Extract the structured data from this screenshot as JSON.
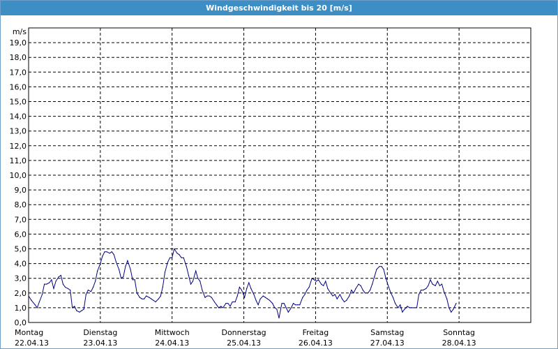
{
  "window": {
    "title": "Windgeschwindigkeit bis 20 [m/s]"
  },
  "colors": {
    "title_bar": "#3c8ec4",
    "line": "#000080",
    "grid": "#000000"
  },
  "chart_data": {
    "type": "line",
    "title": "Windgeschwindigkeit bis 20 [m/s]",
    "ylabel": "m/s",
    "ylim": [
      0,
      20
    ],
    "y_ticks": [
      "0,0",
      "1,0",
      "2,0",
      "3,0",
      "4,0",
      "5,0",
      "6,0",
      "7,0",
      "8,0",
      "9,0",
      "10,0",
      "11,0",
      "12,0",
      "13,0",
      "14,0",
      "15,0",
      "16,0",
      "17,0",
      "18,0",
      "19,0"
    ],
    "x_ticks": [
      {
        "day": "Montag",
        "date": "22.04.13"
      },
      {
        "day": "Dienstag",
        "date": "23.04.13"
      },
      {
        "day": "Mittwoch",
        "date": "24.04.13"
      },
      {
        "day": "Donnerstag",
        "date": "25.04.13"
      },
      {
        "day": "Freitag",
        "date": "26.04.13"
      },
      {
        "day": "Samstag",
        "date": "27.04.13"
      },
      {
        "day": "Sonntag",
        "date": "28.04.13"
      }
    ],
    "xlim_days": [
      0,
      7
    ],
    "grid": true,
    "series": [
      {
        "values": [
          [
            0.0,
            1.8
          ],
          [
            0.04,
            1.5
          ],
          [
            0.09,
            1.2
          ],
          [
            0.12,
            1.0
          ],
          [
            0.15,
            1.4
          ],
          [
            0.19,
            1.9
          ],
          [
            0.22,
            2.6
          ],
          [
            0.25,
            2.6
          ],
          [
            0.29,
            2.7
          ],
          [
            0.32,
            2.9
          ],
          [
            0.35,
            2.3
          ],
          [
            0.38,
            2.8
          ],
          [
            0.42,
            3.1
          ],
          [
            0.45,
            3.2
          ],
          [
            0.48,
            2.6
          ],
          [
            0.51,
            2.4
          ],
          [
            0.55,
            2.3
          ],
          [
            0.58,
            2.2
          ],
          [
            0.61,
            1.0
          ],
          [
            0.64,
            1.1
          ],
          [
            0.67,
            0.8
          ],
          [
            0.71,
            0.7
          ],
          [
            0.74,
            0.8
          ],
          [
            0.77,
            0.9
          ],
          [
            0.8,
            1.9
          ],
          [
            0.83,
            2.2
          ],
          [
            0.87,
            2.1
          ],
          [
            0.9,
            2.4
          ],
          [
            0.93,
            2.8
          ],
          [
            0.96,
            3.5
          ],
          [
            1.0,
            4.0
          ],
          [
            1.03,
            4.5
          ],
          [
            1.06,
            4.8
          ],
          [
            1.09,
            4.8
          ],
          [
            1.13,
            4.7
          ],
          [
            1.16,
            4.8
          ],
          [
            1.19,
            4.6
          ],
          [
            1.22,
            4.1
          ],
          [
            1.26,
            3.6
          ],
          [
            1.29,
            3.0
          ],
          [
            1.32,
            3.1
          ],
          [
            1.35,
            3.8
          ],
          [
            1.38,
            4.2
          ],
          [
            1.42,
            3.6
          ],
          [
            1.45,
            2.9
          ],
          [
            1.48,
            2.9
          ],
          [
            1.51,
            2.0
          ],
          [
            1.55,
            1.7
          ],
          [
            1.58,
            1.6
          ],
          [
            1.61,
            1.6
          ],
          [
            1.64,
            1.8
          ],
          [
            1.68,
            1.7
          ],
          [
            1.71,
            1.6
          ],
          [
            1.74,
            1.5
          ],
          [
            1.77,
            1.4
          ],
          [
            1.81,
            1.6
          ],
          [
            1.84,
            1.8
          ],
          [
            1.87,
            2.4
          ],
          [
            1.9,
            3.4
          ],
          [
            1.94,
            4.1
          ],
          [
            1.97,
            4.4
          ],
          [
            2.0,
            4.4
          ],
          [
            2.03,
            5.0
          ],
          [
            2.07,
            4.7
          ],
          [
            2.1,
            4.6
          ],
          [
            2.13,
            4.4
          ],
          [
            2.16,
            4.4
          ],
          [
            2.2,
            3.8
          ],
          [
            2.23,
            3.2
          ],
          [
            2.26,
            2.6
          ],
          [
            2.29,
            2.8
          ],
          [
            2.33,
            3.5
          ],
          [
            2.36,
            3.0
          ],
          [
            2.39,
            2.8
          ],
          [
            2.42,
            2.2
          ],
          [
            2.46,
            1.7
          ],
          [
            2.49,
            1.8
          ],
          [
            2.52,
            1.8
          ],
          [
            2.55,
            1.7
          ],
          [
            2.59,
            1.4
          ],
          [
            2.62,
            1.2
          ],
          [
            2.65,
            1.0
          ],
          [
            2.68,
            1.1
          ],
          [
            2.71,
            1.0
          ],
          [
            2.75,
            1.3
          ],
          [
            2.78,
            1.3
          ],
          [
            2.81,
            1.1
          ],
          [
            2.84,
            1.4
          ],
          [
            2.88,
            1.4
          ],
          [
            2.91,
            1.8
          ],
          [
            2.94,
            2.4
          ],
          [
            2.97,
            2.2
          ],
          [
            3.01,
            1.7
          ],
          [
            3.04,
            2.3
          ],
          [
            3.07,
            2.7
          ],
          [
            3.1,
            2.3
          ],
          [
            3.14,
            1.9
          ],
          [
            3.17,
            1.5
          ],
          [
            3.2,
            1.2
          ],
          [
            3.23,
            1.6
          ],
          [
            3.27,
            1.8
          ],
          [
            3.3,
            1.7
          ],
          [
            3.33,
            1.6
          ],
          [
            3.36,
            1.5
          ],
          [
            3.4,
            1.3
          ],
          [
            3.43,
            1.0
          ],
          [
            3.46,
            0.9
          ],
          [
            3.49,
            0.3
          ],
          [
            3.53,
            1.3
          ],
          [
            3.56,
            1.3
          ],
          [
            3.59,
            1.0
          ],
          [
            3.62,
            0.7
          ],
          [
            3.66,
            1.0
          ],
          [
            3.69,
            1.3
          ],
          [
            3.72,
            1.2
          ],
          [
            3.75,
            1.2
          ],
          [
            3.78,
            1.2
          ],
          [
            3.82,
            1.7
          ],
          [
            3.85,
            1.9
          ],
          [
            3.88,
            2.2
          ],
          [
            3.91,
            2.4
          ],
          [
            3.95,
            3.0
          ],
          [
            3.98,
            2.9
          ],
          [
            4.01,
            2.8
          ],
          [
            4.04,
            2.9
          ],
          [
            4.08,
            2.6
          ],
          [
            4.11,
            2.5
          ],
          [
            4.14,
            2.8
          ],
          [
            4.17,
            2.3
          ],
          [
            4.21,
            2.0
          ],
          [
            4.24,
            1.8
          ],
          [
            4.27,
            1.9
          ],
          [
            4.3,
            1.6
          ],
          [
            4.34,
            1.9
          ],
          [
            4.37,
            1.6
          ],
          [
            4.4,
            1.4
          ],
          [
            4.43,
            1.5
          ],
          [
            4.47,
            1.8
          ],
          [
            4.5,
            2.2
          ],
          [
            4.53,
            2.0
          ],
          [
            4.56,
            2.3
          ],
          [
            4.6,
            2.6
          ],
          [
            4.63,
            2.5
          ],
          [
            4.66,
            2.2
          ],
          [
            4.69,
            2.0
          ],
          [
            4.73,
            2.0
          ],
          [
            4.76,
            2.2
          ],
          [
            4.79,
            2.6
          ],
          [
            4.82,
            3.1
          ],
          [
            4.85,
            3.6
          ],
          [
            4.89,
            3.8
          ],
          [
            4.92,
            3.8
          ],
          [
            4.95,
            3.6
          ],
          [
            4.98,
            3.0
          ],
          [
            5.02,
            2.4
          ],
          [
            5.05,
            2.0
          ],
          [
            5.08,
            1.7
          ],
          [
            5.11,
            1.3
          ],
          [
            5.15,
            1.0
          ],
          [
            5.18,
            1.2
          ],
          [
            5.21,
            0.7
          ],
          [
            5.24,
            0.9
          ],
          [
            5.28,
            1.1
          ],
          [
            5.31,
            1.0
          ],
          [
            5.34,
            1.0
          ],
          [
            5.37,
            1.0
          ],
          [
            5.41,
            1.0
          ],
          [
            5.44,
            1.9
          ],
          [
            5.47,
            2.2
          ],
          [
            5.5,
            2.2
          ],
          [
            5.54,
            2.3
          ],
          [
            5.57,
            2.5
          ],
          [
            5.6,
            2.9
          ],
          [
            5.63,
            2.6
          ],
          [
            5.67,
            2.5
          ],
          [
            5.7,
            2.8
          ],
          [
            5.73,
            2.5
          ],
          [
            5.76,
            2.6
          ],
          [
            5.79,
            2.1
          ],
          [
            5.83,
            1.6
          ],
          [
            5.86,
            1.0
          ],
          [
            5.89,
            0.7
          ],
          [
            5.92,
            0.9
          ],
          [
            5.96,
            1.3
          ]
        ]
      }
    ]
  }
}
